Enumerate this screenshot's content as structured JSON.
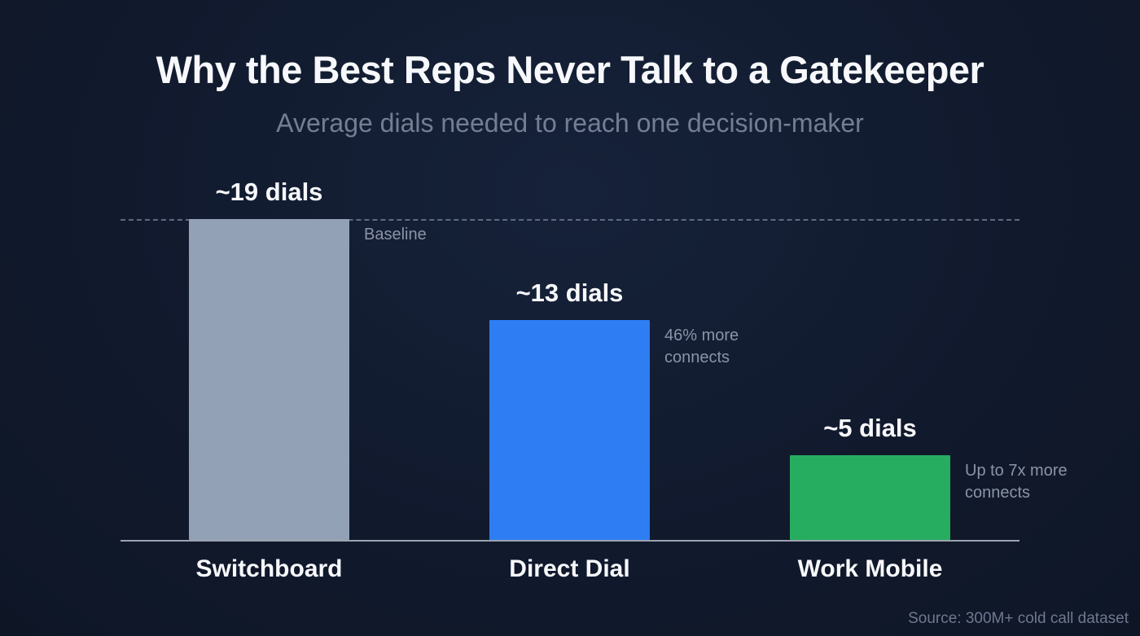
{
  "header": {
    "title": "Why the Best Reps Never Talk to a Gatekeeper",
    "subtitle": "Average dials needed to reach one decision-maker"
  },
  "footer": {
    "source": "Source: 300M+ cold call dataset"
  },
  "colors": {
    "background": "#111a2d",
    "title_text": "#f7f8fb",
    "subtitle_text": "#747e93",
    "annotation_text": "#8b93a6",
    "baseline_dash": "#5e6a82",
    "axis_line": "#b6bdc9",
    "switchboard_bar": "#93a1b6",
    "direct_dial_bar": "#2f7df2",
    "work_mobile_bar": "#27ad5f"
  },
  "chart_data": {
    "type": "bar",
    "title": "Why the Best Reps Never Talk to a Gatekeeper",
    "subtitle": "Average dials needed to reach one decision-maker",
    "categories": [
      "Switchboard",
      "Direct Dial",
      "Work Mobile"
    ],
    "values": [
      19,
      13,
      5
    ],
    "value_labels": [
      "~19 dials",
      "~13 dials",
      "~5 dials"
    ],
    "bar_colors": [
      "#93a1b6",
      "#2f7df2",
      "#27ad5f"
    ],
    "annotations": [
      "Baseline",
      "46% more connects",
      "Up to 7x more connects"
    ],
    "baseline": {
      "value": 19,
      "label": "Baseline"
    },
    "unit": "dials",
    "ylim": [
      0,
      19
    ],
    "grid": false,
    "legend": false,
    "source": "Source: 300M+ cold call dataset"
  }
}
